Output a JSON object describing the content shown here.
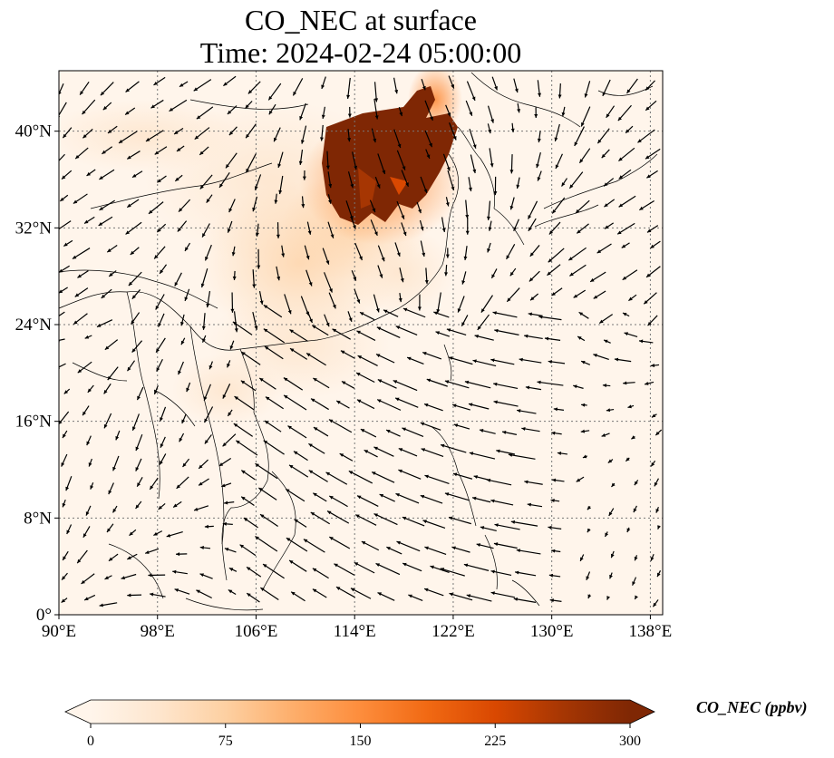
{
  "title": {
    "line1": "CO_NEC at surface",
    "line2": "Time: 2024-02-24 05:00:00"
  },
  "map": {
    "lon_range": [
      90,
      139
    ],
    "lat_range": [
      0,
      45
    ],
    "lon_ticks": [
      "90°E",
      "98°E",
      "106°E",
      "114°E",
      "122°E",
      "130°E",
      "138°E"
    ],
    "lon_tick_values": [
      90,
      98,
      106,
      114,
      122,
      130,
      138
    ],
    "lat_ticks": [
      "0°",
      "8°N",
      "16°N",
      "24°N",
      "32°N",
      "40°N"
    ],
    "lat_tick_values": [
      0,
      8,
      16,
      24,
      32,
      40
    ],
    "gridlines": true,
    "background_color": "#fff5eb",
    "coastline_color": "#000000",
    "vector_color": "#000000"
  },
  "colorbar": {
    "label": "CO_NEC (ppbv)",
    "ticks": [
      "0",
      "75",
      "150",
      "225",
      "300"
    ],
    "tick_values": [
      0,
      75,
      150,
      225,
      300
    ],
    "range": [
      0,
      300
    ],
    "extend": "both",
    "colormap": [
      "#fff5eb",
      "#fee6ce",
      "#fdd0a2",
      "#fdae6b",
      "#fd8d3c",
      "#f16913",
      "#d94801",
      "#a63603",
      "#7f2704"
    ]
  }
}
